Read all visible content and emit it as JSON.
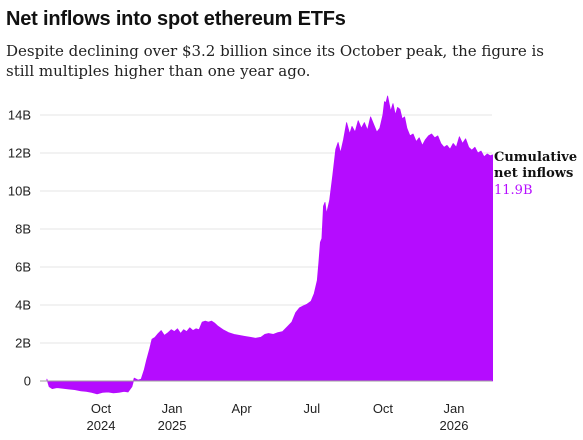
{
  "header": {
    "title": "Net inflows into spot ethereum ETFs",
    "subtitle": "Despite declining over $3.2 billion since its October peak, the figure is still multiples higher than one year ago."
  },
  "colors": {
    "accent": "#B50CFF",
    "grid": "#E4E4E4",
    "zero_line": "#9E9E9E",
    "text": "#222222"
  },
  "chart_data": {
    "type": "area",
    "title": "Net inflows into spot ethereum ETFs",
    "subtitle": "Despite declining over $3.2 billion since its October peak, the figure is still multiples higher than one year ago.",
    "xlabel": "",
    "ylabel": "",
    "x_range": [
      "2024-07-23",
      "2026-02-20"
    ],
    "ylim": [
      0,
      14
    ],
    "y_unit": "billions USD",
    "y_ticks": [
      {
        "value": 0,
        "label": "0"
      },
      {
        "value": 2,
        "label": "2B"
      },
      {
        "value": 4,
        "label": "4B"
      },
      {
        "value": 6,
        "label": "6B"
      },
      {
        "value": 8,
        "label": "8B"
      },
      {
        "value": 10,
        "label": "10B"
      },
      {
        "value": 12,
        "label": "12B"
      },
      {
        "value": 14,
        "label": "14B"
      }
    ],
    "x_ticks": [
      {
        "date": "2024-10-01",
        "label": "Oct",
        "sublabel": "2024"
      },
      {
        "date": "2025-01-01",
        "label": "Jan",
        "sublabel": "2025"
      },
      {
        "date": "2025-04-01",
        "label": "Apr",
        "sublabel": ""
      },
      {
        "date": "2025-07-01",
        "label": "Jul",
        "sublabel": ""
      },
      {
        "date": "2025-10-01",
        "label": "Oct",
        "sublabel": ""
      },
      {
        "date": "2026-01-01",
        "label": "Jan",
        "sublabel": "2026"
      }
    ],
    "grid": true,
    "series": [
      {
        "name": "Cumulative net inflows",
        "color": "#B50CFF",
        "points": [
          [
            "2024-07-23",
            0.1
          ],
          [
            "2024-07-26",
            -0.3
          ],
          [
            "2024-07-30",
            -0.4
          ],
          [
            "2024-08-05",
            -0.35
          ],
          [
            "2024-08-12",
            -0.38
          ],
          [
            "2024-08-20",
            -0.42
          ],
          [
            "2024-08-28",
            -0.45
          ],
          [
            "2024-09-05",
            -0.52
          ],
          [
            "2024-09-12",
            -0.55
          ],
          [
            "2024-09-19",
            -0.6
          ],
          [
            "2024-09-26",
            -0.68
          ],
          [
            "2024-10-03",
            -0.6
          ],
          [
            "2024-10-10",
            -0.58
          ],
          [
            "2024-10-17",
            -0.62
          ],
          [
            "2024-10-24",
            -0.6
          ],
          [
            "2024-10-31",
            -0.55
          ],
          [
            "2024-11-05",
            -0.58
          ],
          [
            "2024-11-10",
            -0.3
          ],
          [
            "2024-11-13",
            0.15
          ],
          [
            "2024-11-18",
            0.05
          ],
          [
            "2024-11-22",
            0.1
          ],
          [
            "2024-11-26",
            0.6
          ],
          [
            "2024-11-29",
            1.1
          ],
          [
            "2024-12-03",
            1.7
          ],
          [
            "2024-12-06",
            2.2
          ],
          [
            "2024-12-10",
            2.3
          ],
          [
            "2024-12-14",
            2.5
          ],
          [
            "2024-12-18",
            2.65
          ],
          [
            "2024-12-22",
            2.4
          ],
          [
            "2024-12-27",
            2.55
          ],
          [
            "2024-12-31",
            2.7
          ],
          [
            "2025-01-04",
            2.6
          ],
          [
            "2025-01-08",
            2.75
          ],
          [
            "2025-01-12",
            2.5
          ],
          [
            "2025-01-16",
            2.7
          ],
          [
            "2025-01-20",
            2.6
          ],
          [
            "2025-01-24",
            2.8
          ],
          [
            "2025-01-28",
            2.65
          ],
          [
            "2025-02-01",
            2.75
          ],
          [
            "2025-02-05",
            2.7
          ],
          [
            "2025-02-09",
            3.1
          ],
          [
            "2025-02-13",
            3.15
          ],
          [
            "2025-02-17",
            3.1
          ],
          [
            "2025-02-21",
            3.15
          ],
          [
            "2025-02-25",
            3.05
          ],
          [
            "2025-03-01",
            2.9
          ],
          [
            "2025-03-08",
            2.7
          ],
          [
            "2025-03-15",
            2.55
          ],
          [
            "2025-03-22",
            2.45
          ],
          [
            "2025-03-29",
            2.4
          ],
          [
            "2025-04-05",
            2.35
          ],
          [
            "2025-04-12",
            2.3
          ],
          [
            "2025-04-19",
            2.25
          ],
          [
            "2025-04-26",
            2.3
          ],
          [
            "2025-05-01",
            2.45
          ],
          [
            "2025-05-06",
            2.5
          ],
          [
            "2025-05-12",
            2.45
          ],
          [
            "2025-05-18",
            2.55
          ],
          [
            "2025-05-24",
            2.6
          ],
          [
            "2025-05-30",
            2.85
          ],
          [
            "2025-06-05",
            3.1
          ],
          [
            "2025-06-10",
            3.6
          ],
          [
            "2025-06-15",
            3.85
          ],
          [
            "2025-06-20",
            3.95
          ],
          [
            "2025-06-25",
            4.05
          ],
          [
            "2025-06-30",
            4.2
          ],
          [
            "2025-07-04",
            4.6
          ],
          [
            "2025-07-08",
            5.3
          ],
          [
            "2025-07-10",
            6.2
          ],
          [
            "2025-07-12",
            7.3
          ],
          [
            "2025-07-14",
            7.5
          ],
          [
            "2025-07-16",
            9.2
          ],
          [
            "2025-07-18",
            9.4
          ],
          [
            "2025-07-20",
            8.8
          ],
          [
            "2025-07-24",
            9.5
          ],
          [
            "2025-07-28",
            10.8
          ],
          [
            "2025-08-01",
            12.2
          ],
          [
            "2025-08-04",
            12.55
          ],
          [
            "2025-08-07",
            12.0
          ],
          [
            "2025-08-11",
            12.7
          ],
          [
            "2025-08-15",
            13.6
          ],
          [
            "2025-08-19",
            13.0
          ],
          [
            "2025-08-22",
            13.4
          ],
          [
            "2025-08-26",
            13.1
          ],
          [
            "2025-08-30",
            13.7
          ],
          [
            "2025-09-03",
            13.3
          ],
          [
            "2025-09-07",
            13.6
          ],
          [
            "2025-09-11",
            13.2
          ],
          [
            "2025-09-15",
            13.9
          ],
          [
            "2025-09-19",
            13.5
          ],
          [
            "2025-09-23",
            13.1
          ],
          [
            "2025-09-27",
            13.3
          ],
          [
            "2025-10-01",
            14.0
          ],
          [
            "2025-10-03",
            14.7
          ],
          [
            "2025-10-05",
            14.65
          ],
          [
            "2025-10-07",
            15.0
          ],
          [
            "2025-10-09",
            14.6
          ],
          [
            "2025-10-11",
            14.2
          ],
          [
            "2025-10-14",
            14.6
          ],
          [
            "2025-10-17",
            14.0
          ],
          [
            "2025-10-20",
            14.4
          ],
          [
            "2025-10-23",
            14.3
          ],
          [
            "2025-10-26",
            13.8
          ],
          [
            "2025-10-29",
            13.9
          ],
          [
            "2025-11-01",
            13.3
          ],
          [
            "2025-11-05",
            12.9
          ],
          [
            "2025-11-09",
            13.0
          ],
          [
            "2025-11-13",
            12.6
          ],
          [
            "2025-11-17",
            12.8
          ],
          [
            "2025-11-21",
            12.4
          ],
          [
            "2025-11-25",
            12.7
          ],
          [
            "2025-11-29",
            12.9
          ],
          [
            "2025-12-03",
            13.0
          ],
          [
            "2025-12-07",
            12.8
          ],
          [
            "2025-12-11",
            12.9
          ],
          [
            "2025-12-15",
            12.5
          ],
          [
            "2025-12-19",
            12.3
          ],
          [
            "2025-12-23",
            12.4
          ],
          [
            "2025-12-27",
            12.2
          ],
          [
            "2025-12-31",
            12.5
          ],
          [
            "2026-01-04",
            12.3
          ],
          [
            "2026-01-08",
            12.85
          ],
          [
            "2026-01-12",
            12.5
          ],
          [
            "2026-01-16",
            12.75
          ],
          [
            "2026-01-20",
            12.3
          ],
          [
            "2026-01-24",
            12.15
          ],
          [
            "2026-01-28",
            12.3
          ],
          [
            "2026-02-01",
            12.0
          ],
          [
            "2026-02-05",
            12.1
          ],
          [
            "2026-02-09",
            11.8
          ],
          [
            "2026-02-13",
            11.95
          ],
          [
            "2026-02-17",
            11.85
          ],
          [
            "2026-02-20",
            11.9
          ]
        ]
      }
    ],
    "annotation": {
      "label_line1": "Cumulative",
      "label_line2": "net inflows",
      "value_label": "11.9B"
    }
  }
}
